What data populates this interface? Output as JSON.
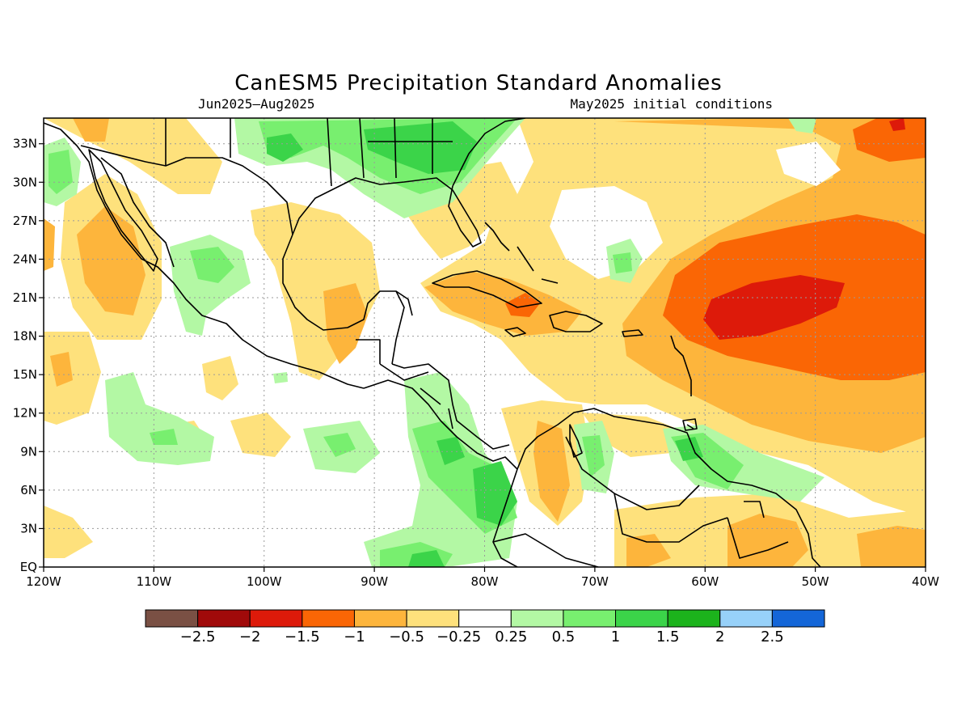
{
  "title": "CanESM5 Precipitation Standard Anomalies",
  "subtitle_left": "Jun2025–Aug2025",
  "subtitle_right": "May2025 initial conditions",
  "map": {
    "lon_range": [
      -120,
      -40
    ],
    "lat_range": [
      0,
      35
    ],
    "lon_ticks": [
      {
        "value": -120,
        "label": "120W"
      },
      {
        "value": -110,
        "label": "110W"
      },
      {
        "value": -100,
        "label": "100W"
      },
      {
        "value": -90,
        "label": "90W"
      },
      {
        "value": -80,
        "label": "80W"
      },
      {
        "value": -70,
        "label": "70W"
      },
      {
        "value": -60,
        "label": "60W"
      },
      {
        "value": -50,
        "label": "50W"
      },
      {
        "value": -40,
        "label": "40W"
      }
    ],
    "lat_ticks": [
      {
        "value": 0,
        "label": "EQ"
      },
      {
        "value": 3,
        "label": "3N"
      },
      {
        "value": 6,
        "label": "6N"
      },
      {
        "value": 9,
        "label": "9N"
      },
      {
        "value": 12,
        "label": "12N"
      },
      {
        "value": 15,
        "label": "15N"
      },
      {
        "value": 18,
        "label": "18N"
      },
      {
        "value": 21,
        "label": "21N"
      },
      {
        "value": 24,
        "label": "24N"
      },
      {
        "value": 27,
        "label": "27N"
      },
      {
        "value": 30,
        "label": "30N"
      },
      {
        "value": 33,
        "label": "33N"
      }
    ]
  },
  "colorbar": {
    "colors": [
      "#7a5044",
      "#a00a0a",
      "#dd1a0a",
      "#fa6605",
      "#fdb53c",
      "#fee17c",
      "#ffffff",
      "#b3f8a4",
      "#78ef6f",
      "#3bd449",
      "#1cb31c",
      "#97d1f9",
      "#1466d8"
    ],
    "labels": [
      "−2.5",
      "−2",
      "−1.5",
      "−1",
      "−0.5",
      "−0.25",
      "0.25",
      "0.5",
      "1",
      "1.5",
      "2",
      "2.5"
    ]
  },
  "colors": {
    "light_orange": "#fee17c",
    "orange": "#fdb53c",
    "dark_orange": "#fa6605",
    "red": "#dd1a0a",
    "light_green": "#b3f8a4",
    "green": "#78ef6f",
    "dark_green": "#3bd449",
    "darker_green": "#1cb31c"
  }
}
